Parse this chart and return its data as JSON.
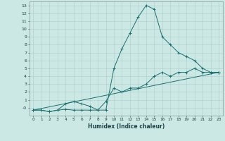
{
  "xlabel": "Humidex (Indice chaleur)",
  "background_color": "#cce8e4",
  "grid_color": "#aacccc",
  "line_color": "#1a7070",
  "xlim": [
    -0.5,
    23.5
  ],
  "ylim": [
    -1.0,
    13.5
  ],
  "xticks": [
    0,
    1,
    2,
    3,
    4,
    5,
    6,
    7,
    8,
    9,
    10,
    11,
    12,
    13,
    14,
    15,
    16,
    17,
    18,
    19,
    20,
    21,
    22,
    23
  ],
  "yticks": [
    0,
    1,
    2,
    3,
    4,
    5,
    6,
    7,
    8,
    9,
    10,
    11,
    12,
    13
  ],
  "ytick_labels": [
    "-0",
    "1",
    "2",
    "3",
    "4",
    "5",
    "6",
    "7",
    "8",
    "9",
    "10",
    "11",
    "12",
    "13"
  ],
  "series": [
    {
      "x": [
        0,
        1,
        2,
        3,
        4,
        5,
        6,
        7,
        8,
        9,
        10,
        11,
        12,
        13,
        14,
        15,
        16,
        17,
        18,
        19,
        20,
        21,
        22,
        23
      ],
      "y": [
        -0.3,
        -0.3,
        -0.5,
        -0.3,
        -0.2,
        -0.3,
        -0.3,
        -0.3,
        -0.3,
        -0.3,
        5.0,
        7.5,
        9.5,
        11.5,
        13.0,
        12.5,
        9.0,
        8.0,
        7.0,
        6.5,
        6.0,
        5.0,
        4.5,
        4.5
      ]
    },
    {
      "x": [
        0,
        1,
        2,
        3,
        4,
        5,
        6,
        7,
        8,
        9,
        10,
        11,
        12,
        13,
        14,
        15,
        16,
        17,
        18,
        19,
        20,
        21,
        22,
        23
      ],
      "y": [
        -0.3,
        -0.3,
        -0.5,
        -0.3,
        0.5,
        0.8,
        0.5,
        0.2,
        -0.3,
        0.8,
        2.5,
        2.0,
        2.5,
        2.5,
        3.0,
        4.0,
        4.5,
        4.0,
        4.5,
        4.5,
        5.0,
        4.5,
        4.5,
        4.5
      ]
    },
    {
      "x": [
        0,
        23
      ],
      "y": [
        -0.3,
        4.5
      ]
    }
  ]
}
